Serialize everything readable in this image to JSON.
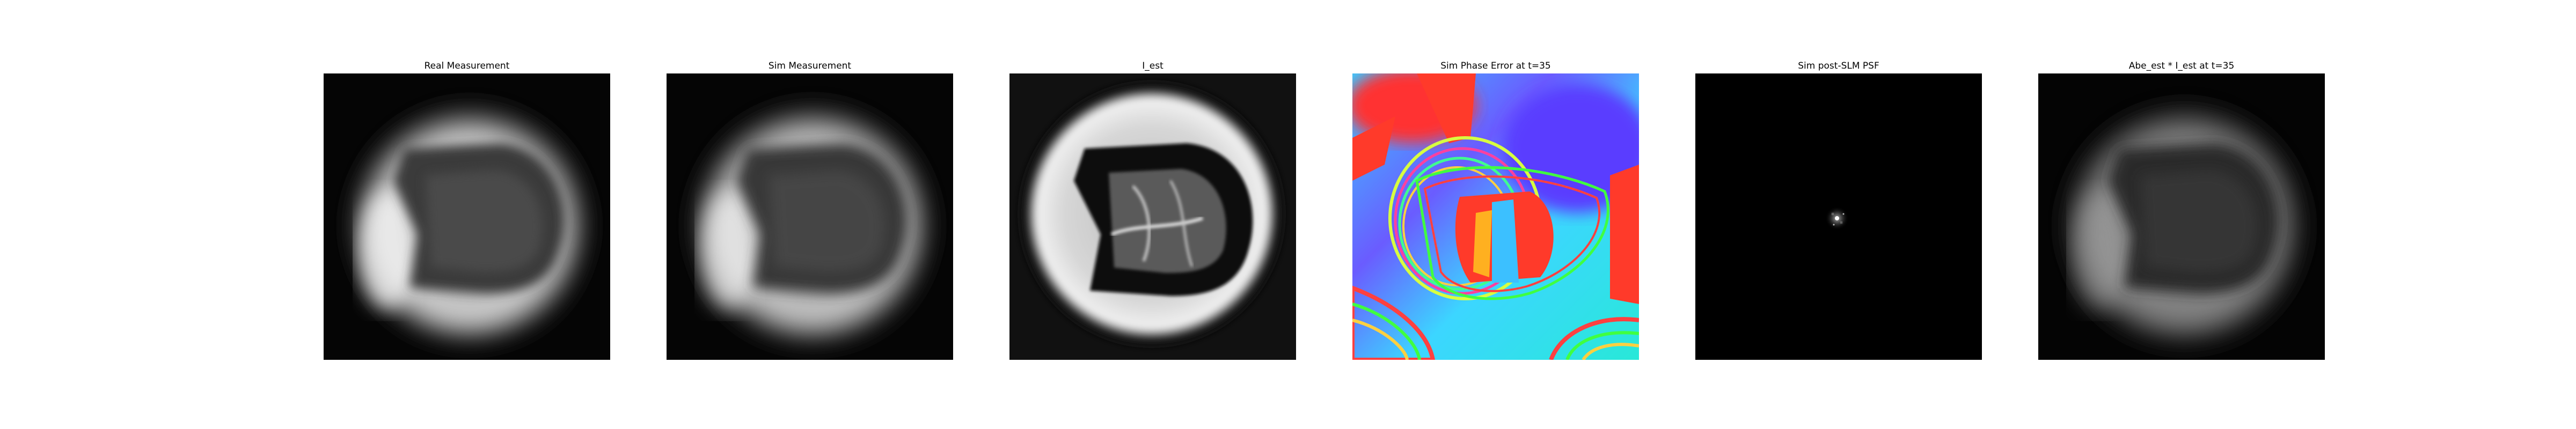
{
  "figure": {
    "panels": [
      {
        "title": "Real Measurement",
        "image": "blurred-bright-ring-with-dark-d-shaped-object"
      },
      {
        "title": "Sim Measurement",
        "image": "blurred-bright-ring-with-dark-d-shaped-object"
      },
      {
        "title": "I_est",
        "image": "sharp-bright-ring-with-dark-d-shaped-object"
      },
      {
        "title": "Sim Phase Error at t=35",
        "image": "wrapped-phase-map-rainbow-fringes"
      },
      {
        "title": "Sim post-SLM PSF",
        "image": "dark-field-with-small-central-speckle"
      },
      {
        "title": "Abe_est * I_est at t=35",
        "image": "blurred-dim-ring-with-dark-d-shaped-object"
      }
    ]
  }
}
